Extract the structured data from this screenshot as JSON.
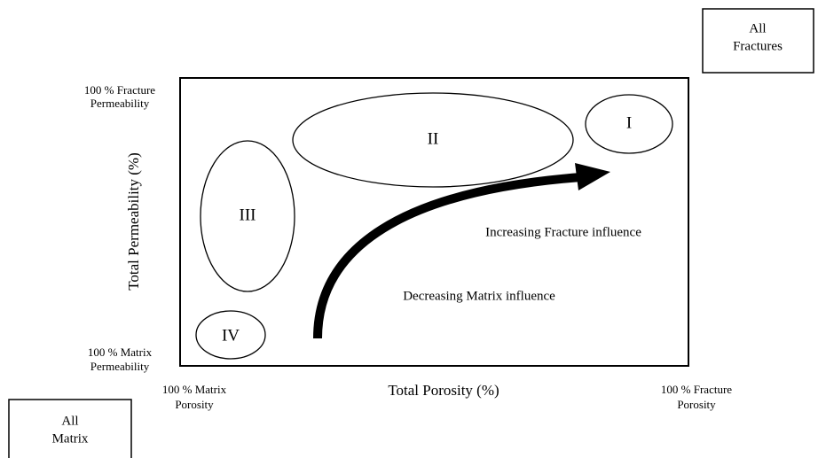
{
  "boxes": {
    "fractures": [
      "All",
      "Fractures"
    ],
    "matrix": [
      "All",
      "Matrix"
    ]
  },
  "axes": {
    "x_label": "Total Porosity (%)",
    "y_label": "Total Permeability (%)",
    "y_top": [
      "100 % Fracture",
      "Permeability"
    ],
    "y_bottom": [
      "100 % Matrix",
      "Permeability"
    ],
    "x_left": [
      "100 % Matrix",
      "Porosity"
    ],
    "x_right": [
      "100 % Fracture",
      "Porosity"
    ]
  },
  "regions": [
    "I",
    "II",
    "III",
    "IV"
  ],
  "annotations": {
    "increasing": "Increasing Fracture influence",
    "decreasing": "Decreasing Matrix influence"
  }
}
